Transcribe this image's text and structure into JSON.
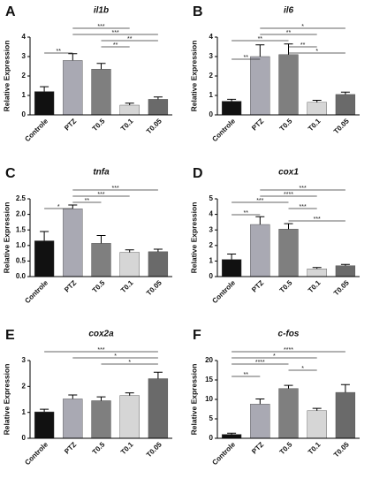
{
  "chart_data": [
    {
      "type": "bar",
      "panel": "A",
      "title": "il1b",
      "y_label": "Relative Expression",
      "categories": [
        "Controle",
        "PTZ",
        "T0.5",
        "T0.1",
        "T0.05"
      ],
      "values": [
        1.2,
        2.8,
        2.35,
        0.5,
        0.8
      ],
      "errors": [
        0.25,
        0.35,
        0.3,
        0.1,
        0.12
      ],
      "colors": [
        "#111111",
        "#a9a9b3",
        "#7f7f7f",
        "#d6d6d6",
        "#6a6a6a"
      ],
      "ylim": [
        0,
        4
      ],
      "yticks": [
        0,
        1,
        2,
        3,
        4
      ],
      "significance": [
        {
          "pair": [
            "PTZ",
            "T0.1"
          ],
          "label": "***"
        },
        {
          "pair": [
            "PTZ",
            "T0.05"
          ],
          "label": "***"
        },
        {
          "pair": [
            "T0.5",
            "T0.05"
          ],
          "label": "**"
        },
        {
          "pair": [
            "T0.5",
            "T0.1"
          ],
          "label": "**"
        },
        {
          "pair": [
            "Controle",
            "PTZ"
          ],
          "label": "**"
        }
      ]
    },
    {
      "type": "bar",
      "panel": "B",
      "title": "il6",
      "y_label": "Relative Expression",
      "categories": [
        "Controle",
        "PTZ",
        "T0.5",
        "T0.1",
        "T0.05"
      ],
      "values": [
        0.7,
        3.0,
        3.1,
        0.65,
        1.05
      ],
      "errors": [
        0.1,
        0.6,
        0.55,
        0.1,
        0.12
      ],
      "colors": [
        "#111111",
        "#a9a9b3",
        "#7f7f7f",
        "#d6d6d6",
        "#6a6a6a"
      ],
      "ylim": [
        0,
        4
      ],
      "yticks": [
        0,
        1,
        2,
        3,
        4
      ],
      "significance": [
        {
          "pair": [
            "PTZ",
            "T0.05"
          ],
          "label": "*"
        },
        {
          "pair": [
            "PTZ",
            "T0.1"
          ],
          "label": "**"
        },
        {
          "pair": [
            "Controle",
            "T0.5"
          ],
          "label": "**"
        },
        {
          "pair": [
            "T0.5",
            "T0.1"
          ],
          "label": "**"
        },
        {
          "pair": [
            "T0.5",
            "T0.05"
          ],
          "label": "*"
        },
        {
          "pair": [
            "Controle",
            "PTZ"
          ],
          "label": "**"
        }
      ]
    },
    {
      "type": "bar",
      "panel": "C",
      "title": "tnfa",
      "y_label": "Relative Expression",
      "categories": [
        "Controle",
        "PTZ",
        "T0.5",
        "T0.1",
        "T0.05"
      ],
      "values": [
        1.15,
        2.18,
        1.07,
        0.78,
        0.8
      ],
      "errors": [
        0.3,
        0.12,
        0.25,
        0.08,
        0.08
      ],
      "colors": [
        "#111111",
        "#a9a9b3",
        "#7f7f7f",
        "#d6d6d6",
        "#6a6a6a"
      ],
      "ylim": [
        0,
        2.5
      ],
      "yticks": [
        {
          "value": 0,
          "label": "0.0"
        },
        0.5,
        {
          "value": 1,
          "label": "1.0"
        },
        1.5,
        {
          "value": 2,
          "label": "2.0"
        },
        2.5
      ],
      "significance": [
        {
          "pair": [
            "PTZ",
            "T0.05"
          ],
          "label": "***"
        },
        {
          "pair": [
            "PTZ",
            "T0.1"
          ],
          "label": "***"
        },
        {
          "pair": [
            "PTZ",
            "T0.5"
          ],
          "label": "**"
        },
        {
          "pair": [
            "Controle",
            "PTZ"
          ],
          "label": "*"
        }
      ]
    },
    {
      "type": "bar",
      "panel": "D",
      "title": "cox1",
      "y_label": "Relative Expression",
      "categories": [
        "Controle",
        "PTZ",
        "T0.5",
        "T0.1",
        "T0.05"
      ],
      "values": [
        1.1,
        3.35,
        3.05,
        0.5,
        0.7
      ],
      "errors": [
        0.35,
        0.5,
        0.35,
        0.08,
        0.08
      ],
      "colors": [
        "#111111",
        "#a9a9b3",
        "#7f7f7f",
        "#d6d6d6",
        "#6a6a6a"
      ],
      "ylim": [
        0,
        5
      ],
      "yticks": [
        0,
        1,
        2,
        3,
        4,
        5
      ],
      "significance": [
        {
          "pair": [
            "PTZ",
            "T0.05"
          ],
          "label": "***"
        },
        {
          "pair": [
            "PTZ",
            "T0.1"
          ],
          "label": "****"
        },
        {
          "pair": [
            "Controle",
            "T0.5"
          ],
          "label": "***"
        },
        {
          "pair": [
            "T0.5",
            "T0.1"
          ],
          "label": "***"
        },
        {
          "pair": [
            "Controle",
            "PTZ"
          ],
          "label": "**"
        },
        {
          "pair": [
            "T0.5",
            "T0.05"
          ],
          "label": "***"
        }
      ]
    },
    {
      "type": "bar",
      "panel": "E",
      "title": "cox2a",
      "y_label": "Relative Expression",
      "categories": [
        "Controle",
        "PTZ",
        "T0.5",
        "T0.1",
        "T0.05"
      ],
      "values": [
        1.02,
        1.52,
        1.45,
        1.65,
        2.3
      ],
      "errors": [
        0.1,
        0.15,
        0.15,
        0.1,
        0.25
      ],
      "colors": [
        "#111111",
        "#a9a9b3",
        "#7f7f7f",
        "#d6d6d6",
        "#6a6a6a"
      ],
      "ylim": [
        0,
        3
      ],
      "yticks": [
        0,
        1,
        2,
        3
      ],
      "significance": [
        {
          "pair": [
            "Controle",
            "T0.05"
          ],
          "label": "***"
        },
        {
          "pair": [
            "PTZ",
            "T0.05"
          ],
          "label": "*"
        },
        {
          "pair": [
            "T0.5",
            "T0.05"
          ],
          "label": "*"
        }
      ]
    },
    {
      "type": "bar",
      "panel": "F",
      "title": "c-fos",
      "y_label": "Relative Expression",
      "categories": [
        "Controle",
        "PTZ",
        "T0.5",
        "T0.1",
        "T0.05"
      ],
      "values": [
        1.0,
        8.8,
        12.8,
        7.1,
        11.8
      ],
      "errors": [
        0.3,
        1.3,
        0.8,
        0.6,
        2.0
      ],
      "colors": [
        "#111111",
        "#a9a9b3",
        "#7f7f7f",
        "#d6d6d6",
        "#6a6a6a"
      ],
      "ylim": [
        0,
        20
      ],
      "yticks": [
        0,
        5,
        10,
        15,
        20
      ],
      "significance": [
        {
          "pair": [
            "Controle",
            "T0.05"
          ],
          "label": "****"
        },
        {
          "pair": [
            "Controle",
            "T0.1"
          ],
          "label": "*"
        },
        {
          "pair": [
            "Controle",
            "T0.5"
          ],
          "label": "****"
        },
        {
          "pair": [
            "T0.5",
            "T0.1"
          ],
          "label": "*"
        },
        {
          "pair": [
            "Controle",
            "PTZ"
          ],
          "label": "**"
        }
      ]
    }
  ]
}
